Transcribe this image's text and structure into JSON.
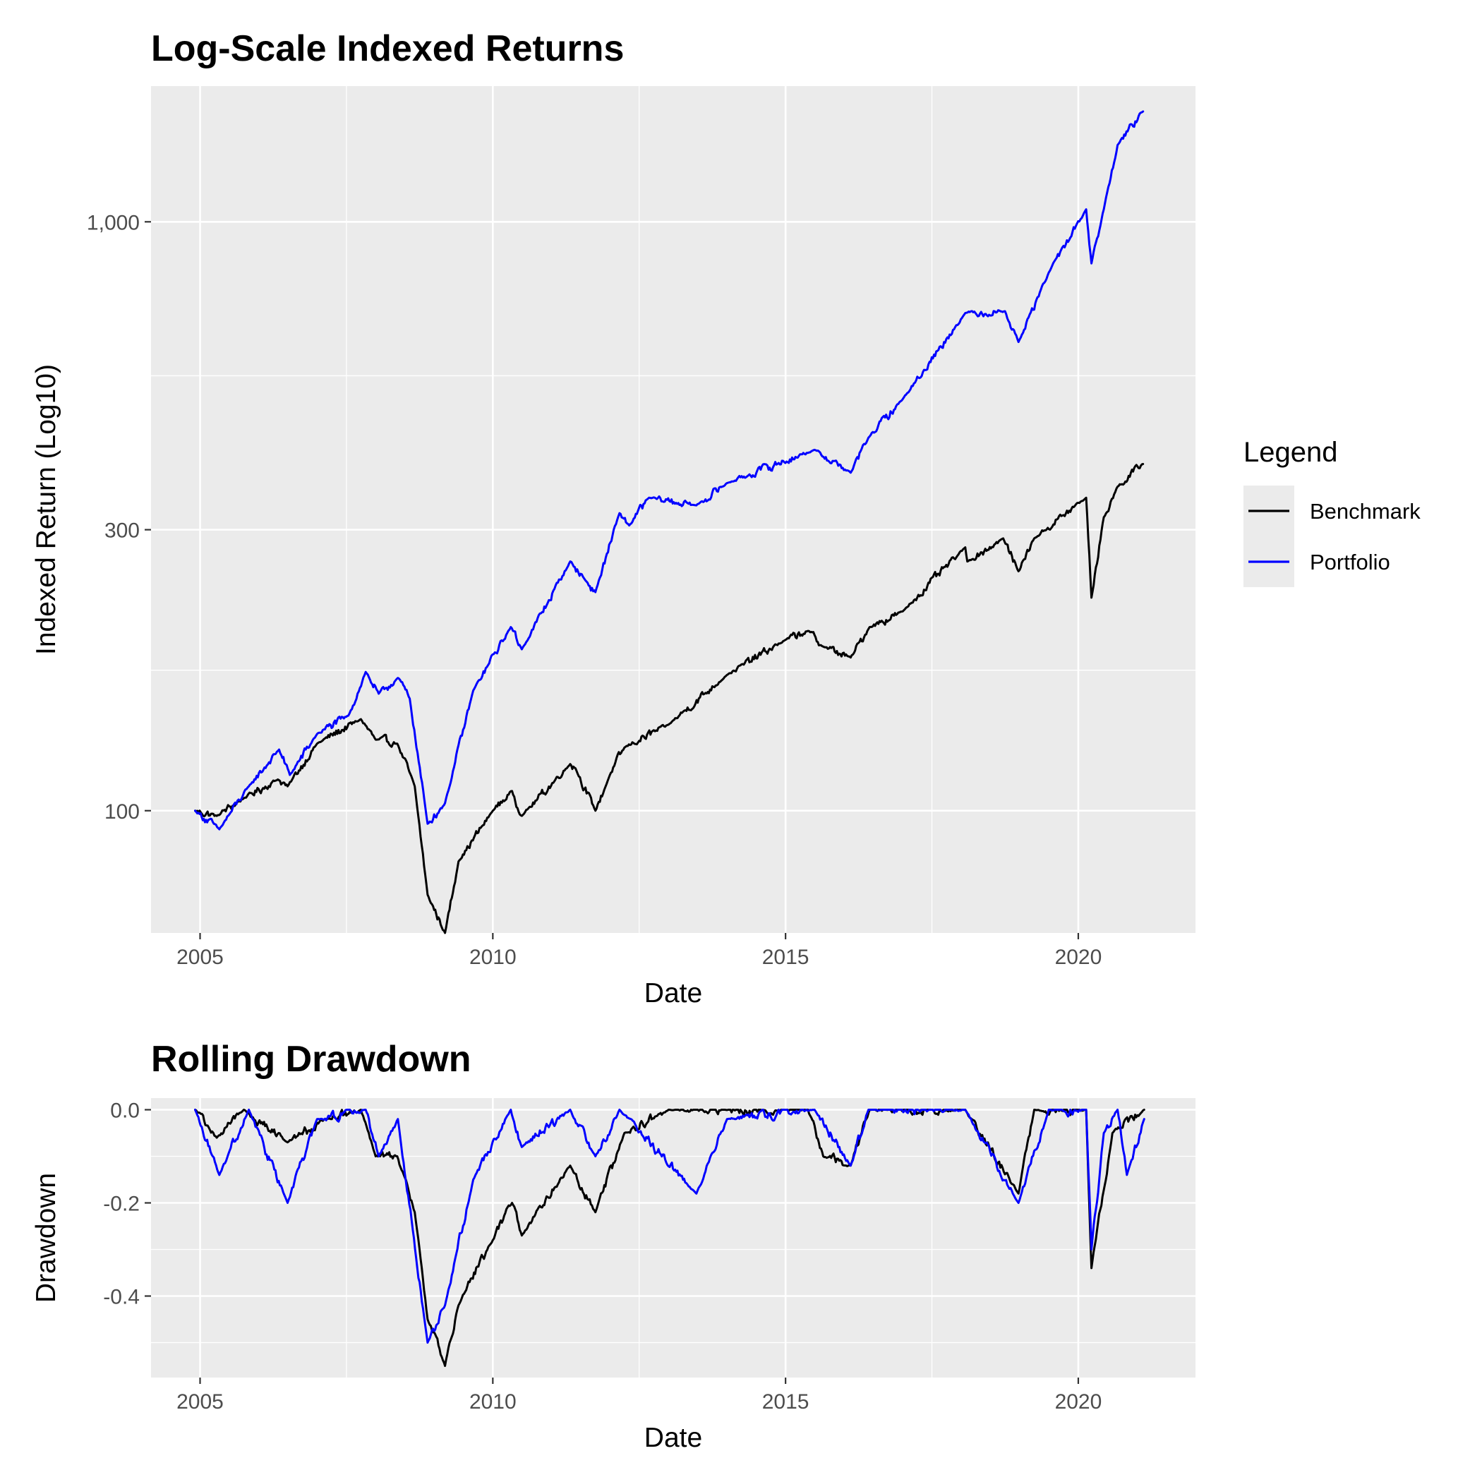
{
  "chart_data": [
    {
      "type": "line",
      "title": "Log-Scale Indexed Returns",
      "xlabel": "Date",
      "ylabel": "Indexed Return (Log10)",
      "yscale": "log10",
      "xlim": [
        "2004-03-01",
        "2022-01-01"
      ],
      "ylim": [
        62,
        1700
      ],
      "x_ticks": [
        {
          "date": "2005-01-01",
          "label": "2005"
        },
        {
          "date": "2010-01-01",
          "label": "2010"
        },
        {
          "date": "2015-01-01",
          "label": "2015"
        },
        {
          "date": "2020-01-01",
          "label": "2020"
        }
      ],
      "y_ticks": [
        {
          "value": 100,
          "label": "100"
        },
        {
          "value": 300,
          "label": "300"
        },
        {
          "value": 1000,
          "label": "1,000"
        }
      ],
      "grid": true,
      "legend": {
        "title": "Legend",
        "position": "right"
      },
      "series": [
        {
          "name": "Benchmark",
          "color": "#000000",
          "points": [
            [
              "2004-12-01",
              100
            ],
            [
              "2005-04-15",
              98
            ],
            [
              "2005-10-01",
              105
            ],
            [
              "2006-05-01",
              113
            ],
            [
              "2006-07-01",
              110
            ],
            [
              "2007-01-01",
              130
            ],
            [
              "2007-10-01",
              143
            ],
            [
              "2008-01-01",
              132
            ],
            [
              "2008-05-15",
              130
            ],
            [
              "2008-09-01",
              110
            ],
            [
              "2008-11-20",
              72
            ],
            [
              "2009-03-09",
              62
            ],
            [
              "2009-06-01",
              82
            ],
            [
              "2010-01-01",
              100
            ],
            [
              "2010-05-01",
              108
            ],
            [
              "2010-07-01",
              98
            ],
            [
              "2011-04-29",
              120
            ],
            [
              "2011-06-01",
              118
            ],
            [
              "2011-10-03",
              100
            ],
            [
              "2012-01-01",
              115
            ],
            [
              "2012-04-01",
              128
            ],
            [
              "2013-01-01",
              140
            ],
            [
              "2013-12-31",
              170
            ],
            [
              "2014-12-31",
              195
            ],
            [
              "2015-05-21",
              202
            ],
            [
              "2015-08-24",
              190
            ],
            [
              "2016-02-11",
              182
            ],
            [
              "2016-06-08",
              205
            ],
            [
              "2017-01-01",
              218
            ],
            [
              "2018-01-26",
              280
            ],
            [
              "2018-02-08",
              265
            ],
            [
              "2018-09-20",
              290
            ],
            [
              "2018-12-24",
              255
            ],
            [
              "2019-04-01",
              290
            ],
            [
              "2020-02-19",
              340
            ],
            [
              "2020-03-23",
              230
            ],
            [
              "2020-06-08",
              315
            ],
            [
              "2020-09-02",
              355
            ],
            [
              "2021-02-15",
              390
            ]
          ]
        },
        {
          "name": "Portfolio",
          "color": "#0000ff",
          "points": [
            [
              "2004-12-01",
              100
            ],
            [
              "2005-05-01",
              93
            ],
            [
              "2005-11-01",
              110
            ],
            [
              "2006-05-09",
              127
            ],
            [
              "2006-07-15",
              115
            ],
            [
              "2007-01-01",
              135
            ],
            [
              "2007-07-15",
              145
            ],
            [
              "2007-10-31",
              172
            ],
            [
              "2008-01-20",
              158
            ],
            [
              "2008-05-19",
              168
            ],
            [
              "2008-08-01",
              155
            ],
            [
              "2008-11-20",
              95
            ],
            [
              "2009-03-09",
              103
            ],
            [
              "2009-09-01",
              160
            ],
            [
              "2010-04-23",
              205
            ],
            [
              "2010-07-01",
              188
            ],
            [
              "2011-04-29",
              265
            ],
            [
              "2011-08-08",
              245
            ],
            [
              "2011-10-03",
              235
            ],
            [
              "2012-03-01",
              320
            ],
            [
              "2012-05-01",
              305
            ],
            [
              "2012-09-01",
              340
            ],
            [
              "2013-06-24",
              330
            ],
            [
              "2014-01-01",
              360
            ],
            [
              "2015-07-01",
              410
            ],
            [
              "2016-02-11",
              375
            ],
            [
              "2016-06-01",
              430
            ],
            [
              "2017-01-01",
              500
            ],
            [
              "2018-01-26",
              700
            ],
            [
              "2018-10-01",
              705
            ],
            [
              "2018-12-24",
              625
            ],
            [
              "2019-07-01",
              820
            ],
            [
              "2020-02-19",
              1050
            ],
            [
              "2020-03-23",
              850
            ],
            [
              "2020-06-08",
              1050
            ],
            [
              "2020-09-02",
              1350
            ],
            [
              "2021-02-15",
              1550
            ]
          ]
        }
      ]
    },
    {
      "type": "line",
      "title": "Rolling Drawdown",
      "xlabel": "Date",
      "ylabel": "Drawdown",
      "xlim": [
        "2004-03-01",
        "2022-01-01"
      ],
      "ylim": [
        -0.575,
        0.025
      ],
      "x_ticks": [
        {
          "date": "2005-01-01",
          "label": "2005"
        },
        {
          "date": "2010-01-01",
          "label": "2010"
        },
        {
          "date": "2015-01-01",
          "label": "2015"
        },
        {
          "date": "2020-01-01",
          "label": "2020"
        }
      ],
      "y_ticks": [
        {
          "value": 0.0,
          "label": "0.0"
        },
        {
          "value": -0.2,
          "label": "-0.2"
        },
        {
          "value": -0.4,
          "label": "-0.4"
        }
      ],
      "grid": true,
      "series": [
        {
          "name": "Benchmark",
          "color": "#000000",
          "points": [
            [
              "2004-12-01",
              0
            ],
            [
              "2005-04-15",
              -0.06
            ],
            [
              "2005-10-01",
              0
            ],
            [
              "2006-07-01",
              -0.07
            ],
            [
              "2007-02-27",
              -0.02
            ],
            [
              "2007-10-01",
              0
            ],
            [
              "2008-01-01",
              -0.1
            ],
            [
              "2008-05-15",
              -0.1
            ],
            [
              "2008-09-01",
              -0.22
            ],
            [
              "2008-11-20",
              -0.45
            ],
            [
              "2009-03-09",
              -0.55
            ],
            [
              "2009-06-01",
              -0.42
            ],
            [
              "2010-01-01",
              -0.28
            ],
            [
              "2010-05-01",
              -0.2
            ],
            [
              "2010-07-01",
              -0.27
            ],
            [
              "2011-04-29",
              -0.12
            ],
            [
              "2011-10-03",
              -0.22
            ],
            [
              "2012-04-01",
              -0.05
            ],
            [
              "2013-01-01",
              0
            ],
            [
              "2015-05-21",
              0
            ],
            [
              "2015-08-24",
              -0.1
            ],
            [
              "2016-02-11",
              -0.12
            ],
            [
              "2016-06-08",
              0
            ],
            [
              "2018-01-26",
              0
            ],
            [
              "2018-12-24",
              -0.18
            ],
            [
              "2019-04-01",
              0
            ],
            [
              "2020-02-19",
              0
            ],
            [
              "2020-03-23",
              -0.34
            ],
            [
              "2020-08-01",
              -0.05
            ],
            [
              "2021-02-15",
              0
            ]
          ]
        },
        {
          "name": "Portfolio",
          "color": "#0000ff",
          "points": [
            [
              "2004-12-01",
              0
            ],
            [
              "2005-05-01",
              -0.14
            ],
            [
              "2005-11-01",
              0
            ],
            [
              "2006-07-01",
              -0.2
            ],
            [
              "2007-01-01",
              -0.02
            ],
            [
              "2007-10-31",
              0
            ],
            [
              "2008-01-20",
              -0.1
            ],
            [
              "2008-05-19",
              -0.02
            ],
            [
              "2008-11-20",
              -0.5
            ],
            [
              "2009-03-09",
              -0.42
            ],
            [
              "2009-09-01",
              -0.15
            ],
            [
              "2010-04-23",
              0
            ],
            [
              "2010-07-01",
              -0.08
            ],
            [
              "2011-04-29",
              0
            ],
            [
              "2011-10-03",
              -0.1
            ],
            [
              "2012-03-01",
              0
            ],
            [
              "2013-06-24",
              -0.18
            ],
            [
              "2014-01-01",
              -0.02
            ],
            [
              "2015-07-01",
              0
            ],
            [
              "2016-02-11",
              -0.12
            ],
            [
              "2016-06-01",
              0
            ],
            [
              "2018-01-26",
              0
            ],
            [
              "2018-12-24",
              -0.2
            ],
            [
              "2019-07-01",
              0
            ],
            [
              "2020-02-19",
              0
            ],
            [
              "2020-03-23",
              -0.3
            ],
            [
              "2020-06-08",
              -0.05
            ],
            [
              "2020-09-02",
              0
            ],
            [
              "2020-10-30",
              -0.14
            ],
            [
              "2021-02-15",
              -0.02
            ]
          ]
        }
      ]
    }
  ]
}
